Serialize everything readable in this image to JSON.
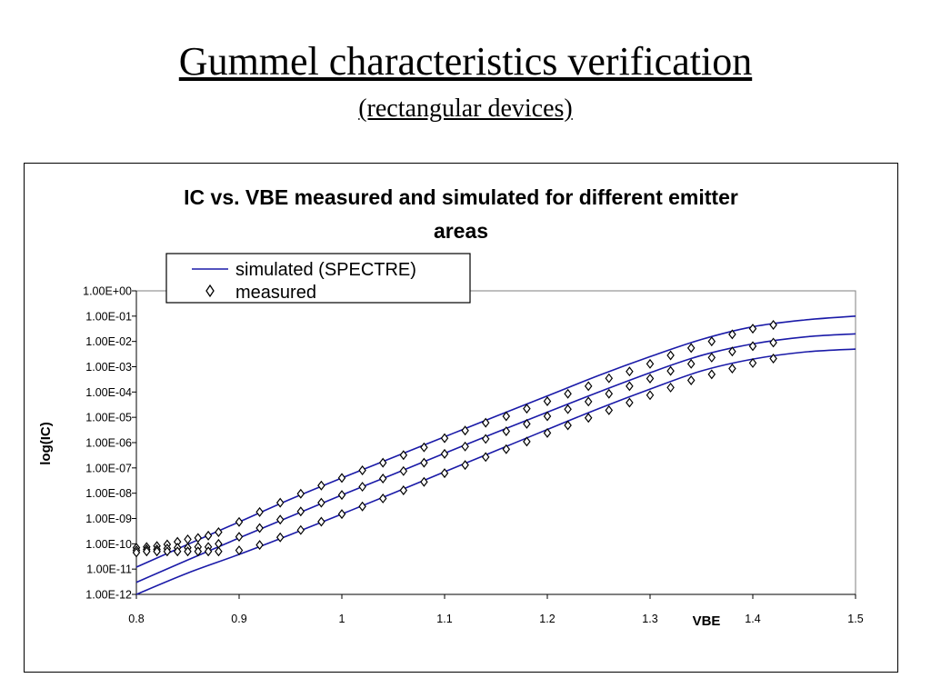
{
  "slide": {
    "title": "Gummel characteristics verification",
    "subtitle": "(rectangular devices)"
  },
  "chart_data": {
    "type": "line",
    "title_lines": [
      "IC vs. VBE measured and simulated for different emitter",
      "areas"
    ],
    "xlabel": "VBE",
    "ylabel": "log(IC)",
    "xlim": [
      0.8,
      1.5
    ],
    "ylim_exponent": [
      -12,
      0
    ],
    "y_scale": "log",
    "x_ticks": [
      "0.8",
      "0.9",
      "1",
      "1.1",
      "1.2",
      "1.3",
      "1.4",
      "1.5"
    ],
    "y_ticks": [
      "1.00E+00",
      "1.00E-01",
      "1.00E-02",
      "1.00E-03",
      "1.00E-04",
      "1.00E-05",
      "1.00E-06",
      "1.00E-07",
      "1.00E-08",
      "1.00E-09",
      "1.00E-10",
      "1.00E-11",
      "1.00E-12"
    ],
    "legend": {
      "position": "top-left",
      "simulated_label": "simulated (SPECTRE)",
      "measured_label": "measured"
    },
    "colors": {
      "simulated": "#1a1aa8",
      "measured": "#000000",
      "grid": "#7f7f7f"
    },
    "series": [
      {
        "device": 1,
        "simulated": {
          "x": [
            0.8,
            0.85,
            0.9,
            0.95,
            1.0,
            1.05,
            1.1,
            1.15,
            1.2,
            1.25,
            1.3,
            1.35,
            1.4,
            1.45,
            1.5
          ],
          "y": [
            1.2e-11,
            9.5e-11,
            7.3e-10,
            5.8e-09,
            4e-08,
            2.6e-07,
            1.7e-06,
            1.1e-05,
            7e-05,
            0.00045,
            0.0025,
            0.012,
            0.038,
            0.07,
            0.1
          ]
        },
        "measured": {
          "x": [
            0.8,
            0.81,
            0.82,
            0.83,
            0.84,
            0.85,
            0.86,
            0.87,
            0.88,
            0.9,
            0.92,
            0.94,
            0.96,
            0.98,
            1.0,
            1.02,
            1.04,
            1.06,
            1.08,
            1.1,
            1.12,
            1.14,
            1.16,
            1.18,
            1.2,
            1.22,
            1.24,
            1.26,
            1.28,
            1.3,
            1.32,
            1.34,
            1.36,
            1.38,
            1.4,
            1.42
          ],
          "y": [
            7e-11,
            7.5e-11,
            8.2e-11,
            9.5e-11,
            1.2e-10,
            1.5e-10,
            1.7e-10,
            2.1e-10,
            2.9e-10,
            7.3e-10,
            1.8e-09,
            4.2e-09,
            9.5e-09,
            2e-08,
            4e-08,
            8e-08,
            1.6e-07,
            3.2e-07,
            6.5e-07,
            1.5e-06,
            3e-06,
            6.1e-06,
            1.1e-05,
            2.2e-05,
            4.3e-05,
            8.5e-05,
            0.00017,
            0.00035,
            0.00065,
            0.0013,
            0.0028,
            0.0055,
            0.01,
            0.019,
            0.032,
            0.045
          ]
        }
      },
      {
        "device": 2,
        "simulated": {
          "x": [
            0.8,
            0.85,
            0.9,
            0.95,
            1.0,
            1.05,
            1.1,
            1.15,
            1.2,
            1.25,
            1.3,
            1.35,
            1.4,
            1.45,
            1.5
          ],
          "y": [
            3e-12,
            2.3e-11,
            1.7e-10,
            1.2e-09,
            8.5e-09,
            5.6e-08,
            3.8e-07,
            2.5e-06,
            1.6e-05,
            0.0001,
            0.00058,
            0.0028,
            0.008,
            0.015,
            0.02
          ]
        },
        "measured": {
          "x": [
            0.8,
            0.81,
            0.82,
            0.83,
            0.84,
            0.85,
            0.86,
            0.87,
            0.88,
            0.9,
            0.92,
            0.94,
            0.96,
            0.98,
            1.0,
            1.02,
            1.04,
            1.06,
            1.08,
            1.1,
            1.12,
            1.14,
            1.16,
            1.18,
            1.2,
            1.22,
            1.24,
            1.26,
            1.28,
            1.3,
            1.32,
            1.34,
            1.36,
            1.38,
            1.4,
            1.42
          ],
          "y": [
            5.5e-11,
            6e-11,
            6e-11,
            6.5e-11,
            7e-11,
            7e-11,
            7.5e-11,
            7.5e-11,
            1e-10,
            1.9e-10,
            4.2e-10,
            9e-10,
            1.9e-09,
            4.2e-09,
            8.5e-09,
            1.8e-08,
            3.8e-08,
            7.5e-08,
            1.6e-07,
            3.6e-07,
            7e-07,
            1.4e-06,
            2.8e-06,
            5.5e-06,
            1.1e-05,
            2.1e-05,
            4.2e-05,
            8.5e-05,
            0.00017,
            0.00034,
            0.00068,
            0.0013,
            0.0023,
            0.004,
            0.0065,
            0.009
          ]
        }
      },
      {
        "device": 3,
        "simulated": {
          "x": [
            0.8,
            0.85,
            0.9,
            0.95,
            1.0,
            1.05,
            1.1,
            1.15,
            1.2,
            1.25,
            1.3,
            1.35,
            1.4,
            1.45,
            1.5
          ],
          "y": [
            1e-12,
            7e-12,
            3.8e-11,
            2.3e-10,
            1.5e-09,
            1e-08,
            7e-08,
            4.8e-07,
            3.3e-06,
            2.2e-05,
            0.00013,
            0.00068,
            0.002,
            0.0038,
            0.005
          ]
        },
        "measured": {
          "x": [
            0.8,
            0.81,
            0.82,
            0.83,
            0.84,
            0.85,
            0.86,
            0.87,
            0.88,
            0.9,
            0.92,
            0.94,
            0.96,
            0.98,
            1.0,
            1.02,
            1.04,
            1.06,
            1.08,
            1.1,
            1.12,
            1.14,
            1.16,
            1.18,
            1.2,
            1.22,
            1.24,
            1.26,
            1.28,
            1.3,
            1.32,
            1.34,
            1.36,
            1.38,
            1.4,
            1.42
          ],
          "y": [
            4.5e-11,
            5e-11,
            5e-11,
            5e-11,
            5e-11,
            5e-11,
            5e-11,
            5e-11,
            5e-11,
            5.5e-11,
            9e-11,
            1.8e-10,
            3.5e-10,
            7.5e-10,
            1.5e-09,
            3e-09,
            6.2e-09,
            1.3e-08,
            2.8e-08,
            6.2e-08,
            1.3e-07,
            2.7e-07,
            5.5e-07,
            1.1e-06,
            2.4e-06,
            4.8e-06,
            9.5e-06,
            1.9e-05,
            3.8e-05,
            7.5e-05,
            0.00015,
            0.00029,
            0.0005,
            0.00085,
            0.0014,
            0.0021
          ]
        }
      }
    ]
  }
}
